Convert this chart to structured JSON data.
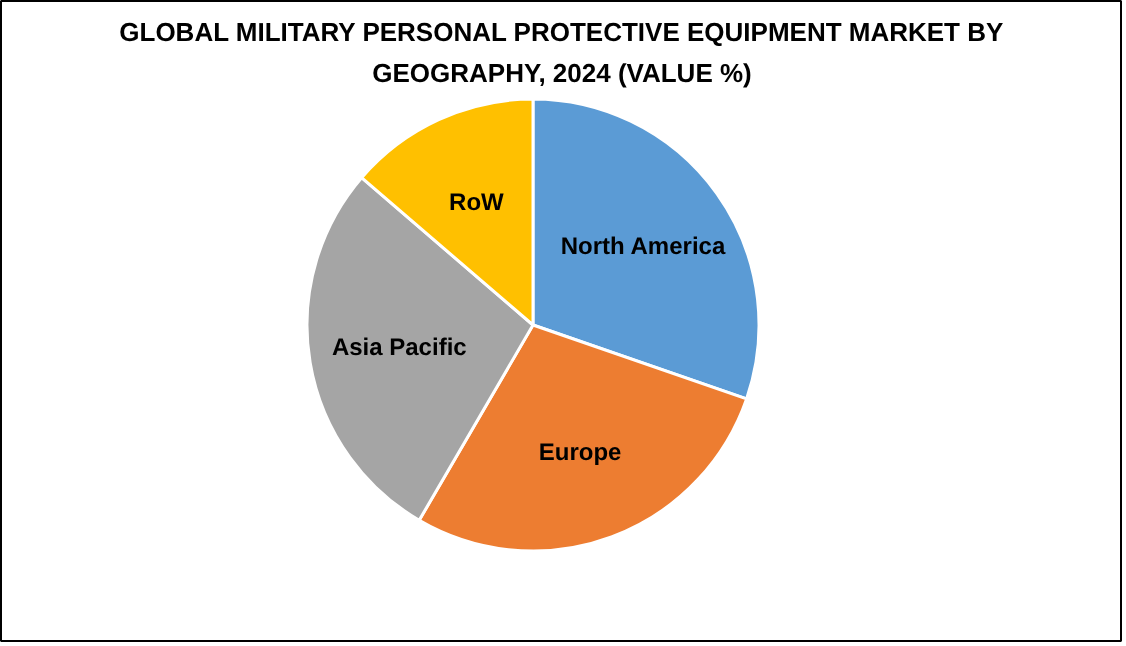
{
  "chart_data": {
    "type": "pie",
    "title": "GLOBAL MILITARY PERSONAL PROTECTIVE EQUIPMENT MARKET BY GEOGRAPHY, 2024 (VALUE %)",
    "categories": [
      "North America",
      "Europe",
      "Asia Pacific",
      "RoW"
    ],
    "values": [
      30.3,
      28.1,
      27.9,
      13.7
    ],
    "colors": [
      "#5b9bd5",
      "#ed7d31",
      "#a5a5a5",
      "#ffc000"
    ],
    "legend": false
  }
}
